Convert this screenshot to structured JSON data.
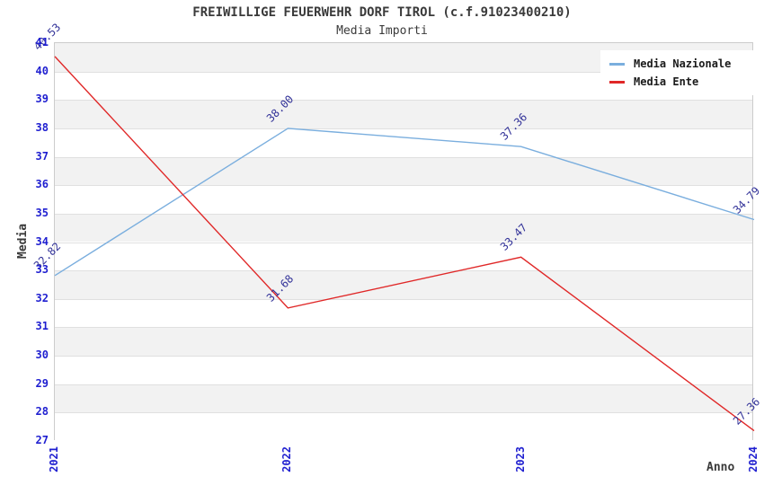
{
  "title": "FREIWILLIGE FEUERWEHR DORF TIROL (c.f.91023400210)",
  "subtitle": "Media Importi",
  "chart_data": {
    "type": "line",
    "categories": [
      "2021",
      "2022",
      "2023",
      "2024"
    ],
    "series": [
      {
        "name": "Media Nazionale",
        "color": "#7aaede",
        "values": [
          32.82,
          38.0,
          37.36,
          34.79
        ]
      },
      {
        "name": "Media Ente",
        "color": "#e02828",
        "values": [
          40.53,
          31.68,
          33.47,
          27.36
        ]
      }
    ],
    "xlabel": "Anno",
    "ylabel": "Media",
    "ylim": [
      27,
      41
    ],
    "ytick_step": 1,
    "grid": true,
    "legend_position": "top-right",
    "point_label_decimals": 2,
    "colors": {
      "tick": "#1f1fd0",
      "point_label": "#333399",
      "band_alt": "#f2f2f2",
      "band_main": "#ffffff",
      "gridline": "#e0e0e0",
      "plot_border": "#cccccc",
      "title": "#3a3a3a"
    }
  }
}
